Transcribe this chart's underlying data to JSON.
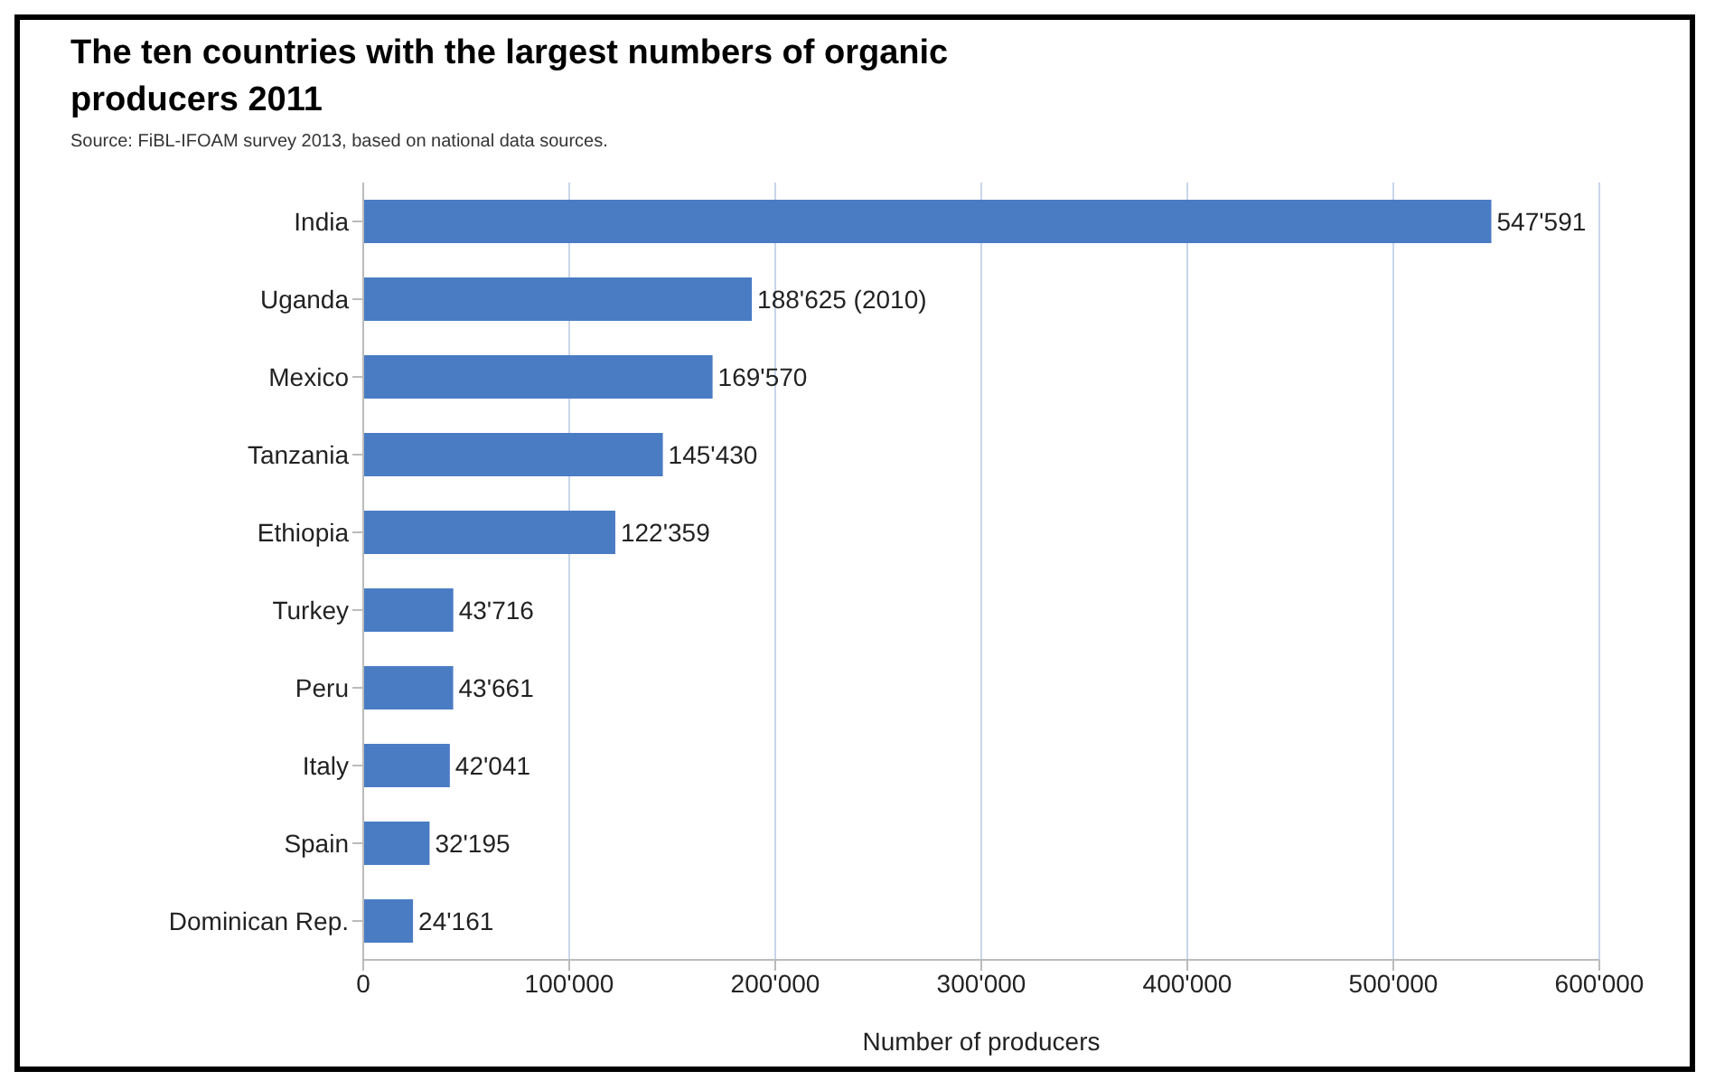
{
  "chart_data": {
    "type": "bar",
    "orientation": "horizontal",
    "title": "The ten countries with the largest numbers of organic producers 2011",
    "annotations": [
      "Source: FiBL-IFOAM survey 2013, based on national data sources."
    ],
    "categories": [
      "India",
      "Uganda",
      "Mexico",
      "Tanzania",
      "Ethiopia",
      "Turkey",
      "Peru",
      "Italy",
      "Spain",
      "Dominican Rep."
    ],
    "values": [
      547591,
      188625,
      169570,
      145430,
      122359,
      43716,
      43661,
      42041,
      32195,
      24161
    ],
    "value_labels": [
      "547'591",
      "188'625 (2010)",
      "169'570",
      "145'430",
      "122'359",
      "43'716",
      "43'661",
      "42'041",
      "32'195",
      "24'161"
    ],
    "color": "#4a7cc4",
    "xlabel": "Number of producers",
    "xlim": [
      0,
      600000
    ],
    "xticks": [
      0,
      {
        "value": 100000,
        "label": "100'000"
      },
      {
        "value": 200000,
        "label": "200'000"
      },
      {
        "value": 300000,
        "label": "300'000"
      },
      {
        "value": 400000,
        "label": "400'000"
      },
      {
        "value": 500000,
        "label": "500'000"
      },
      {
        "value": 600000,
        "label": "600'000"
      }
    ],
    "grid": "x"
  }
}
